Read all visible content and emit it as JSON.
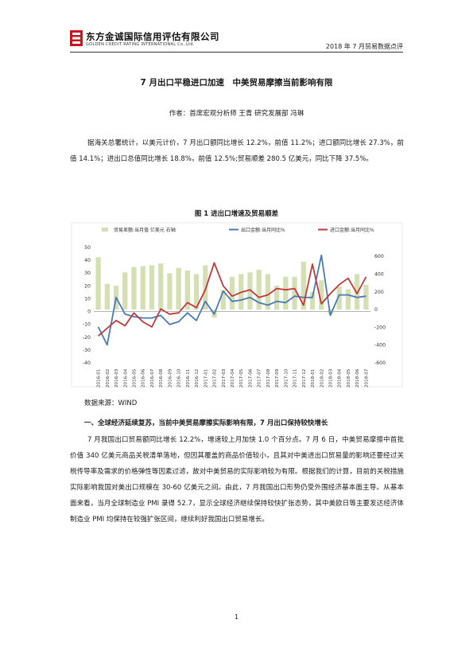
{
  "header": {
    "logo_cn": "东方金诚国际信用评估有限公司",
    "logo_en": "GOLDEN CREDIT RATING INTERNATIONAL Co.,Ltd.",
    "doc_label": "2018 年 7 月贸易数据点评",
    "colors": {
      "logo_red": "#c8161d"
    },
    "icon": "golden-credit-logo"
  },
  "title": "7 月出口平稳进口加速　中美贸易摩擦当前影响有限",
  "author": "作者：首席宏观分析师  王青    研究发展部  冯琳",
  "para1": "据海关总署统计，以美元计价，7 月出口额同比增长 12.2%，前值 11.2%；进口额同比增长 27.3%，前值 14.1%；进出口总值同比增长 18.8%，前值 12.5%;贸易顺差 280.5 亿美元，同比下降 37.5%。",
  "figure_title": "图 1  进出口增速及贸易顺差",
  "source": "数据来源：WIND",
  "section_heading": "一、全球经济延续复苏，当前中美贸易摩擦实际影响有限，7 月出口保持较快增长",
  "para2": "7 月我国出口贸易额同比增长 12.2%，增速较上月加快 1.0 个百分点。7 月 6 日，中美贸易摩擦中首批价值 340 亿美元商品关税清单落地，但因其覆盖的商品价值较小，且其对中美进出口贸易量的影响还要经过关税传导率及需求的价格弹性等因素过滤，故对中美贸易的实际影响较为有限。根据我们的计算，目前的关税措施实际影响我国对美出口规模在 30-60 亿美元之间。由此，7 月我国出口形势仍受外围经济基本面主导。从基本面来看，当月全球制造业 PMI 录得 52.7，显示全球经济继续保持较快扩张态势，其中美欧日等主要发达经济体制造业 PMI 均保持在较强扩张区间，继续利好我国出口贸易增长。",
  "page_number": "1",
  "chart_data": {
    "type": "bar+line",
    "legend": [
      "贸易差额:当月值 亿美元 右轴",
      "出口金额:当月同比%",
      "进口金额:当月同比%"
    ],
    "legend_position": "top",
    "colors": {
      "bar": "#d4e0b3",
      "export": "#4a7ab5",
      "import": "#c0393b"
    },
    "categories": [
      "2016-01",
      "2016-02",
      "2016-03",
      "2016-04",
      "2016-05",
      "2016-06",
      "2016-07",
      "2016-08",
      "2016-09",
      "2016-10",
      "2016-11",
      "2016-12",
      "2017-01",
      "2017-02",
      "2017-03",
      "2017-04",
      "2017-05",
      "2017-06",
      "2017-07",
      "2017-08",
      "2017-09",
      "2017-10",
      "2017-11",
      "2017-12",
      "2018-01",
      "2018-02",
      "2018-03",
      "2018-04",
      "2018-05",
      "2018-06",
      "2018-07"
    ],
    "series": [
      {
        "name": "贸易差额:当月值 亿美元 右轴",
        "axis": "right",
        "type": "bar",
        "values": [
          590,
          290,
          270,
          420,
          480,
          490,
          500,
          520,
          410,
          470,
          440,
          400,
          500,
          -90,
          220,
          370,
          400,
          420,
          450,
          400,
          270,
          370,
          370,
          540,
          200,
          330,
          -50,
          260,
          230,
          400,
          280
        ]
      },
      {
        "name": "出口金额:当月同比%",
        "axis": "left",
        "type": "line",
        "values": [
          -12,
          -26,
          11,
          -2,
          -4,
          -5,
          -5,
          -3,
          -10,
          -8,
          -1,
          -7,
          8,
          -2,
          16,
          8,
          9,
          11,
          7,
          5,
          8,
          7,
          12,
          11,
          11,
          44,
          -3,
          13,
          13,
          11,
          12
        ]
      },
      {
        "name": "进口金额:当月同比%",
        "axis": "left",
        "type": "line",
        "values": [
          -19,
          -13,
          -7,
          -11,
          -1,
          -8,
          -12,
          2,
          -2,
          -1,
          7,
          3,
          17,
          38,
          20,
          12,
          15,
          17,
          11,
          13,
          18,
          17,
          18,
          5,
          37,
          6,
          14,
          21,
          26,
          14,
          27
        ]
      }
    ],
    "left_ylim": [
      -40,
      50
    ],
    "left_ticks": [
      "50",
      "40",
      "30",
      "20",
      "10",
      "0",
      "-10",
      "-20",
      "-30",
      "-40"
    ],
    "right_ylim": [
      -600,
      700
    ],
    "right_ticks": [
      "600",
      "400",
      "200",
      "0",
      "-200",
      "-400",
      "-600"
    ]
  }
}
